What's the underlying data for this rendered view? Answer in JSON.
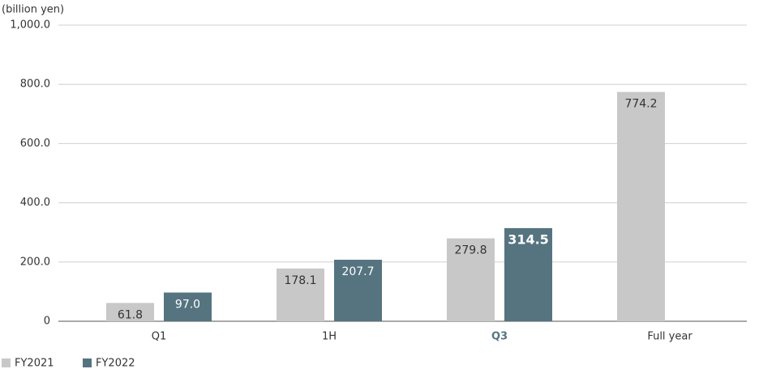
{
  "chart_data": {
    "type": "bar",
    "y_label": "(billion yen)",
    "categories": [
      "Q1",
      "1H",
      "Q3",
      "Full year"
    ],
    "highlight_index": 2,
    "highlight_color": "#557480",
    "series": [
      {
        "name": "FY2021",
        "color": "#c8c8c8",
        "label_color": "#333333",
        "values": [
          61.8,
          178.1,
          279.8,
          774.2
        ],
        "value_labels": [
          "61.8",
          "178.1",
          "279.8",
          "774.2"
        ]
      },
      {
        "name": "FY2022",
        "color": "#557480",
        "label_color": "#ffffff",
        "values": [
          97.0,
          207.7,
          314.5,
          null
        ],
        "value_labels": [
          "97.0",
          "207.7",
          "314.5",
          null
        ]
      }
    ],
    "ylim": [
      0,
      1000
    ],
    "yticks": [
      0,
      {
        "value": 200,
        "label": "200.0"
      },
      {
        "value": 400,
        "label": "400.0"
      },
      {
        "value": 600,
        "label": "600.0"
      },
      {
        "value": 800,
        "label": "800.0"
      },
      {
        "value": 1000,
        "label": "1,000.0"
      }
    ],
    "grid": true
  }
}
